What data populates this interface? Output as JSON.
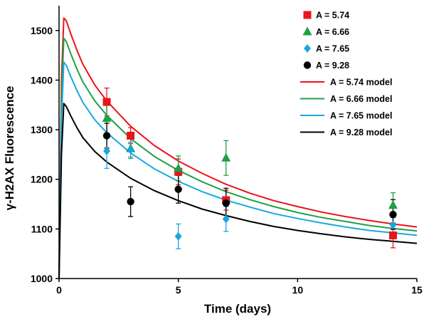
{
  "chart_data": {
    "type": "line",
    "xlabel": "Time (days)",
    "ylabel": "γ-H2AX Fluorescence",
    "xlim": [
      0,
      15
    ],
    "ylim": [
      1000,
      1550
    ],
    "x_ticks": [
      0,
      5,
      10,
      15
    ],
    "y_ticks": [
      1000,
      1100,
      1200,
      1300,
      1400,
      1500
    ],
    "grid": false,
    "legend_position": "top-right",
    "series": [
      {
        "name": "A = 5.74",
        "kind": "scatter",
        "marker": "square",
        "color": "#e8141b",
        "points": [
          {
            "x": 2,
            "y": 1356,
            "err": 28
          },
          {
            "x": 3,
            "y": 1288,
            "err": 16
          },
          {
            "x": 5,
            "y": 1215,
            "err": 26
          },
          {
            "x": 7,
            "y": 1158,
            "err": 20
          },
          {
            "x": 14,
            "y": 1087,
            "err": 25
          }
        ]
      },
      {
        "name": "A = 6.66",
        "kind": "scatter",
        "marker": "triangle",
        "color": "#1fa046",
        "points": [
          {
            "x": 2,
            "y": 1323,
            "err": 30
          },
          {
            "x": 3,
            "y": 1262,
            "err": 20
          },
          {
            "x": 5,
            "y": 1222,
            "err": 25
          },
          {
            "x": 7,
            "y": 1243,
            "err": 35
          },
          {
            "x": 14,
            "y": 1148,
            "err": 25
          }
        ]
      },
      {
        "name": "A = 7.65",
        "kind": "scatter",
        "marker": "diamond",
        "color": "#1aa7e0",
        "points": [
          {
            "x": 2,
            "y": 1257,
            "err": 35
          },
          {
            "x": 3,
            "y": 1260,
            "err": 15
          },
          {
            "x": 5,
            "y": 1085,
            "err": 25
          },
          {
            "x": 7,
            "y": 1120,
            "err": 25
          },
          {
            "x": 14,
            "y": 1108,
            "err": 20
          }
        ]
      },
      {
        "name": "A = 9.28",
        "kind": "scatter",
        "marker": "circle",
        "color": "#000000",
        "points": [
          {
            "x": 2,
            "y": 1288,
            "err": 25
          },
          {
            "x": 3,
            "y": 1155,
            "err": 30
          },
          {
            "x": 5,
            "y": 1180,
            "err": 28
          },
          {
            "x": 7,
            "y": 1152,
            "err": 30
          },
          {
            "x": 14,
            "y": 1129,
            "err": 30
          }
        ]
      },
      {
        "name": "A = 5.74 model",
        "kind": "line",
        "color": "#e8141b",
        "x": [
          0,
          0.1,
          0.2,
          0.3,
          0.5,
          0.75,
          1,
          1.5,
          2,
          3,
          4,
          5,
          6,
          7,
          8,
          9,
          10,
          11,
          12,
          13,
          14,
          15
        ],
        "y": [
          1000,
          1400,
          1525,
          1520,
          1492,
          1460,
          1432,
          1390,
          1358,
          1307,
          1268,
          1237,
          1212,
          1190,
          1172,
          1157,
          1145,
          1134,
          1125,
          1117,
          1110,
          1104
        ]
      },
      {
        "name": "A = 6.66 model",
        "kind": "line",
        "color": "#1fa046",
        "x": [
          0,
          0.1,
          0.2,
          0.3,
          0.5,
          0.75,
          1,
          1.5,
          2,
          3,
          4,
          5,
          6,
          7,
          8,
          9,
          10,
          11,
          12,
          13,
          14,
          15
        ],
        "y": [
          1000,
          1360,
          1484,
          1478,
          1452,
          1422,
          1396,
          1358,
          1329,
          1282,
          1246,
          1218,
          1195,
          1175,
          1159,
          1145,
          1133,
          1123,
          1115,
          1107,
          1101,
          1096
        ]
      },
      {
        "name": "A = 7.65 model",
        "kind": "line",
        "color": "#1aa7e0",
        "x": [
          0,
          0.1,
          0.2,
          0.3,
          0.5,
          0.75,
          1,
          1.5,
          2,
          3,
          4,
          5,
          6,
          7,
          8,
          9,
          10,
          11,
          12,
          13,
          14,
          15
        ],
        "y": [
          1000,
          1320,
          1436,
          1430,
          1406,
          1379,
          1355,
          1320,
          1294,
          1253,
          1221,
          1196,
          1175,
          1158,
          1144,
          1131,
          1121,
          1112,
          1104,
          1097,
          1092,
          1087
        ]
      },
      {
        "name": "A = 9.28 model",
        "kind": "line",
        "color": "#000000",
        "x": [
          0,
          0.1,
          0.2,
          0.3,
          0.5,
          0.75,
          1,
          1.5,
          2,
          3,
          4,
          5,
          6,
          7,
          8,
          9,
          10,
          11,
          12,
          13,
          14,
          15
        ],
        "y": [
          1000,
          1250,
          1353,
          1347,
          1327,
          1304,
          1284,
          1256,
          1235,
          1202,
          1177,
          1157,
          1140,
          1127,
          1115,
          1105,
          1097,
          1090,
          1084,
          1079,
          1075,
          1071
        ]
      }
    ]
  }
}
